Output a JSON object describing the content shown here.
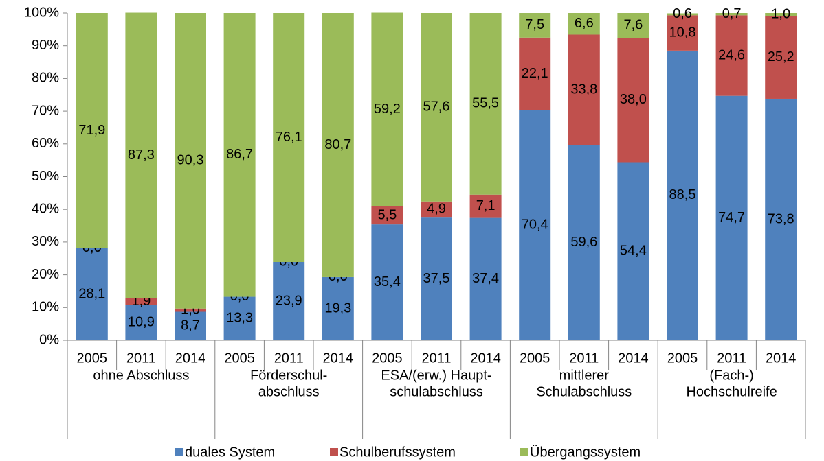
{
  "chart_data": {
    "type": "stacked_bar",
    "categories": [
      "2005",
      "2011",
      "2014",
      "2005",
      "2011",
      "2014",
      "2005",
      "2011",
      "2014",
      "2005",
      "2011",
      "2014",
      "2005",
      "2011",
      "2014"
    ],
    "groups": [
      [
        "ohne Abschluss"
      ],
      [
        "Förderschul-",
        "abschluss"
      ],
      [
        "ESA/(erw.) Haupt-",
        "schulabschluss"
      ],
      [
        "mittlerer",
        "Schulabschluss"
      ],
      [
        "(Fach-)",
        "Hochschulreife"
      ]
    ],
    "series": [
      {
        "name": "duales System",
        "color": "#4f81bd",
        "values": [
          28.1,
          10.9,
          8.7,
          13.3,
          23.9,
          19.3,
          35.4,
          37.5,
          37.4,
          70.4,
          59.6,
          54.4,
          88.5,
          74.7,
          73.8
        ],
        "value_labels": [
          "28,1",
          "10,9",
          "8,7",
          "13,3",
          "23,9",
          "19,3",
          "35,4",
          "37,5",
          "37,4",
          "70,4",
          "59,6",
          "54,4",
          "88,5",
          "74,7",
          "73,8"
        ]
      },
      {
        "name": "Schulberufssystem",
        "color": "#c0504d",
        "values": [
          0.0,
          1.9,
          1.0,
          0.0,
          0.0,
          0.0,
          5.5,
          4.9,
          7.1,
          22.1,
          33.8,
          38.0,
          10.8,
          24.6,
          25.2
        ],
        "value_labels": [
          "0,0",
          "1,9",
          "1,0",
          "0,0",
          "0,0",
          "0,0",
          "5,5",
          "4,9",
          "7,1",
          "22,1",
          "33,8",
          "38,0",
          "10,8",
          "24,6",
          "25,2"
        ]
      },
      {
        "name": "Übergangssystem",
        "color": "#9bbb59",
        "values": [
          71.9,
          87.3,
          90.3,
          86.7,
          76.1,
          80.7,
          59.2,
          57.6,
          55.5,
          7.5,
          6.6,
          7.6,
          0.6,
          0.7,
          1.0
        ],
        "value_labels": [
          "71,9",
          "87,3",
          "90,3",
          "86,7",
          "76,1",
          "80,7",
          "59,2",
          "57,6",
          "55,5",
          "7,5",
          "6,6",
          "7,6",
          "0,6",
          "0,7",
          "1,0"
        ]
      }
    ],
    "ylim": [
      0,
      100
    ],
    "yticks": [
      {
        "value": 0,
        "label": "0%"
      },
      {
        "value": 10,
        "label": "10%"
      },
      {
        "value": 20,
        "label": "20%"
      },
      {
        "value": 30,
        "label": "30%"
      },
      {
        "value": 40,
        "label": "40%"
      },
      {
        "value": 50,
        "label": "50%"
      },
      {
        "value": 60,
        "label": "60%"
      },
      {
        "value": 70,
        "label": "70%"
      },
      {
        "value": 80,
        "label": "80%"
      },
      {
        "value": 90,
        "label": "90%"
      },
      {
        "value": 100,
        "label": "100%"
      }
    ],
    "legend": "bottom"
  }
}
